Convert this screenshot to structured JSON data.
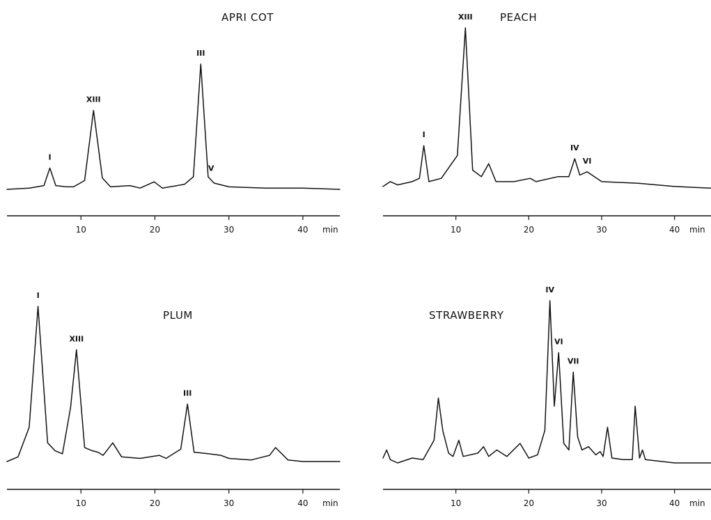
{
  "chart_data": [
    {
      "type": "line",
      "title": "APRI COT",
      "xlabel": "",
      "ylabel": "",
      "x_unit": "min",
      "xlim": [
        0,
        45
      ],
      "ylim": [
        0,
        100
      ],
      "x_ticks": [
        10,
        20,
        30,
        40
      ],
      "grid": false,
      "series": [
        {
          "x": [
            0,
            3,
            5,
            5.8,
            6.6,
            8,
            9,
            10.5,
            11.7,
            12.9,
            14,
            16.6,
            18,
            19.9,
            21,
            24,
            25.2,
            26.2,
            27.2,
            28,
            30,
            35,
            40,
            45
          ],
          "y": [
            0,
            1,
            3,
            17,
            3,
            2,
            2,
            7,
            63,
            9,
            2,
            3,
            1,
            6,
            1,
            4,
            10,
            100,
            10,
            5,
            2,
            1,
            1,
            0
          ]
        }
      ],
      "peak_labels": [
        {
          "label": "I",
          "x": 5.8,
          "y": 17
        },
        {
          "label": "XIII",
          "x": 11.7,
          "y": 63
        },
        {
          "label": "III",
          "x": 26.2,
          "y": 100
        },
        {
          "label": "V",
          "x": 27.6,
          "y": 8
        }
      ]
    },
    {
      "type": "line",
      "title": "PEACH",
      "xlabel": "",
      "ylabel": "",
      "x_unit": "min",
      "xlim": [
        0,
        45
      ],
      "ylim": [
        0,
        100
      ],
      "x_ticks": [
        10,
        20,
        30,
        40
      ],
      "grid": false,
      "series": [
        {
          "x": [
            0,
            1,
            2,
            4,
            5,
            5.6,
            6.3,
            8,
            10.2,
            11.3,
            12.3,
            13.5,
            14.5,
            15.5,
            18,
            20.2,
            21,
            24,
            25.5,
            26.3,
            27,
            28,
            30,
            35,
            40,
            45
          ],
          "y": [
            3,
            6,
            4,
            6,
            8,
            28,
            6,
            8,
            22,
            100,
            13,
            9,
            17,
            6,
            6,
            8,
            6,
            9,
            9,
            20,
            10,
            12,
            6,
            5,
            3,
            2
          ]
        }
      ],
      "peak_labels": [
        {
          "label": "I",
          "x": 5.6,
          "y": 28
        },
        {
          "label": "XIII",
          "x": 11.3,
          "y": 100
        },
        {
          "label": "IV",
          "x": 26.3,
          "y": 20
        },
        {
          "label": "VI",
          "x": 28,
          "y": 12
        }
      ]
    },
    {
      "type": "line",
      "title": "PLUM",
      "xlabel": "",
      "ylabel": "",
      "x_unit": "min",
      "xlim": [
        0,
        45
      ],
      "ylim": [
        0,
        100
      ],
      "x_ticks": [
        10,
        20,
        30,
        40
      ],
      "grid": false,
      "series": [
        {
          "x": [
            0,
            1.5,
            3,
            4.2,
            5.5,
            6.5,
            7.5,
            8.6,
            9.4,
            10.5,
            11.5,
            12.3,
            13,
            14.3,
            15.5,
            18,
            20.6,
            21.5,
            23.5,
            24.4,
            25.3,
            27.3,
            28.9,
            30,
            33,
            35.5,
            36.3,
            38,
            40,
            45
          ],
          "y": [
            0,
            3,
            22,
            100,
            12,
            7,
            5,
            35,
            72,
            9,
            7,
            6,
            4,
            12,
            3,
            2,
            4,
            2,
            8,
            37,
            6,
            5,
            4,
            2,
            1,
            4,
            9,
            1,
            0,
            0
          ]
        }
      ],
      "peak_labels": [
        {
          "label": "I",
          "x": 4.2,
          "y": 100
        },
        {
          "label": "XIII",
          "x": 9.4,
          "y": 72
        },
        {
          "label": "III",
          "x": 24.4,
          "y": 37
        }
      ]
    },
    {
      "type": "line",
      "title": "STRAWBERRY",
      "xlabel": "",
      "ylabel": "",
      "x_unit": "min",
      "xlim": [
        0,
        45
      ],
      "ylim": [
        0,
        100
      ],
      "x_ticks": [
        10,
        20,
        30,
        40
      ],
      "grid": false,
      "series": [
        {
          "x": [
            0,
            0.5,
            1,
            2,
            4,
            5.5,
            7,
            7.6,
            8.2,
            9,
            9.6,
            10.4,
            11,
            13,
            13.8,
            14.5,
            15.6,
            17,
            18.8,
            20,
            21.2,
            22.2,
            22.9,
            23.5,
            24.1,
            24.8,
            25.5,
            26.1,
            26.7,
            27.3,
            28.2,
            29.2,
            29.8,
            30.2,
            30.8,
            31.4,
            33,
            34.2,
            34.6,
            35.2,
            35.6,
            36,
            40,
            45
          ],
          "y": [
            3,
            8,
            2,
            0,
            3,
            2,
            14,
            40,
            20,
            6,
            4,
            14,
            4,
            6,
            10,
            4,
            8,
            4,
            12,
            3,
            5,
            20,
            100,
            35,
            68,
            12,
            8,
            56,
            16,
            8,
            10,
            5,
            7,
            4,
            22,
            3,
            2,
            2,
            35,
            3,
            8,
            2,
            0,
            0
          ]
        }
      ],
      "peak_labels": [
        {
          "label": "IV",
          "x": 22.9,
          "y": 100
        },
        {
          "label": "VI",
          "x": 24.1,
          "y": 68
        },
        {
          "label": "VII",
          "x": 26.1,
          "y": 56
        }
      ]
    }
  ]
}
